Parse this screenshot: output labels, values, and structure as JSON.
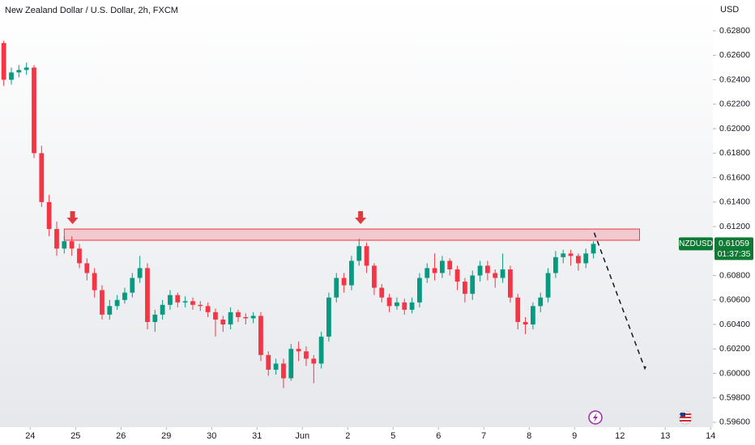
{
  "chart_data": {
    "type": "candlestick",
    "title": "New Zealand Dollar / U.S. Dollar, 2h, FXCM",
    "currency": "USD",
    "symbol": "NZDUSD",
    "countdown": "01:37:35",
    "up_color": "#089981",
    "down_color": "#f23645",
    "open": [
      0.627,
      0.624,
      0.6246,
      0.6248,
      0.625,
      0.618,
      0.614,
      0.6118,
      0.6102,
      0.6108,
      0.6102,
      0.609,
      0.6082,
      0.6068,
      0.6048,
      0.6055,
      0.606,
      0.6066,
      0.6078,
      0.6086,
      0.6042,
      0.6048,
      0.6056,
      0.6064,
      0.6058,
      0.6059,
      0.6056,
      0.6055,
      0.605,
      0.6044,
      0.604,
      0.605,
      0.6046,
      0.6045,
      0.6047,
      0.6015,
      0.6003,
      0.6008,
      0.5996,
      0.602,
      0.6018,
      0.6012,
      0.6008,
      0.603,
      0.6062,
      0.6078,
      0.6072,
      0.6092,
      0.6104,
      0.6088,
      0.607,
      0.6062,
      0.6055,
      0.6058,
      0.6052,
      0.6058,
      0.6078,
      0.6086,
      0.6082,
      0.6092,
      0.6085,
      0.6075,
      0.6065,
      0.608,
      0.6088,
      0.6082,
      0.6078,
      0.6085,
      0.6062,
      0.6042,
      0.604,
      0.6055,
      0.6062,
      0.6082,
      0.6095,
      0.6098,
      0.6096,
      0.609,
      0.6098
    ],
    "high": [
      0.6272,
      0.625,
      0.6252,
      0.6254,
      0.6252,
      0.6186,
      0.6146,
      0.6124,
      0.6112,
      0.6112,
      0.6106,
      0.6094,
      0.6086,
      0.6072,
      0.606,
      0.6064,
      0.607,
      0.6082,
      0.6096,
      0.609,
      0.6052,
      0.606,
      0.6068,
      0.6066,
      0.6063,
      0.6062,
      0.6059,
      0.6058,
      0.6053,
      0.6047,
      0.6054,
      0.6052,
      0.6049,
      0.605,
      0.605,
      0.6018,
      0.6012,
      0.6012,
      0.6024,
      0.6026,
      0.6022,
      0.6015,
      0.6034,
      0.6066,
      0.6082,
      0.6082,
      0.6096,
      0.611,
      0.6107,
      0.609,
      0.6073,
      0.6065,
      0.6062,
      0.6061,
      0.6062,
      0.6082,
      0.609,
      0.6098,
      0.6096,
      0.6094,
      0.6088,
      0.6078,
      0.6084,
      0.6092,
      0.6092,
      0.6085,
      0.6098,
      0.6088,
      0.6065,
      0.6046,
      0.6058,
      0.6066,
      0.6086,
      0.61,
      0.6101,
      0.6101,
      0.6098,
      0.6102,
      0.6108
    ],
    "low": [
      0.6235,
      0.6236,
      0.6242,
      0.6244,
      0.6176,
      0.6136,
      0.6112,
      0.6096,
      0.6098,
      0.6096,
      0.6086,
      0.6076,
      0.6062,
      0.6044,
      0.6044,
      0.6052,
      0.6057,
      0.6062,
      0.6074,
      0.6036,
      0.6034,
      0.6044,
      0.6052,
      0.6054,
      0.6054,
      0.6052,
      0.6051,
      0.6046,
      0.603,
      0.6034,
      0.6036,
      0.6042,
      0.604,
      0.6041,
      0.601,
      0.5998,
      0.5999,
      0.5988,
      0.5994,
      0.601,
      0.6006,
      0.5992,
      0.6004,
      0.6026,
      0.6058,
      0.6066,
      0.6068,
      0.6088,
      0.6082,
      0.6064,
      0.6058,
      0.605,
      0.6052,
      0.6048,
      0.6049,
      0.6054,
      0.6074,
      0.6076,
      0.6078,
      0.608,
      0.6068,
      0.6058,
      0.606,
      0.6075,
      0.6076,
      0.607,
      0.6074,
      0.6058,
      0.6036,
      0.6032,
      0.6036,
      0.605,
      0.6058,
      0.6078,
      0.609,
      0.6088,
      0.6084,
      0.6086,
      0.6094
    ],
    "close": [
      0.624,
      0.6246,
      0.6248,
      0.625,
      0.618,
      0.614,
      0.6118,
      0.6102,
      0.6108,
      0.6102,
      0.609,
      0.6082,
      0.6068,
      0.6048,
      0.6055,
      0.606,
      0.6066,
      0.6078,
      0.6086,
      0.6042,
      0.6048,
      0.6056,
      0.6064,
      0.6058,
      0.6059,
      0.6056,
      0.6055,
      0.605,
      0.6044,
      0.604,
      0.605,
      0.6046,
      0.6045,
      0.6047,
      0.6015,
      0.6003,
      0.6008,
      0.5996,
      0.602,
      0.6018,
      0.6012,
      0.6008,
      0.603,
      0.6062,
      0.6078,
      0.6072,
      0.6092,
      0.6104,
      0.6088,
      0.607,
      0.6062,
      0.6055,
      0.6058,
      0.6052,
      0.6058,
      0.6078,
      0.6086,
      0.6082,
      0.6092,
      0.6085,
      0.6075,
      0.6065,
      0.608,
      0.6088,
      0.6082,
      0.6078,
      0.6085,
      0.6062,
      0.6042,
      0.604,
      0.6055,
      0.6062,
      0.6082,
      0.6095,
      0.6098,
      0.6096,
      0.609,
      0.6098,
      0.61059
    ],
    "xlim": [
      0,
      94.3
    ],
    "xticks": [
      {
        "value": 4,
        "label": "24"
      },
      {
        "value": 10,
        "label": "25"
      },
      {
        "value": 16,
        "label": "26"
      },
      {
        "value": 22,
        "label": "29"
      },
      {
        "value": 28,
        "label": "30"
      },
      {
        "value": 34,
        "label": "31"
      },
      {
        "value": 40,
        "label": "Jun"
      },
      {
        "value": 46,
        "label": "2"
      },
      {
        "value": 52,
        "label": "5"
      },
      {
        "value": 58,
        "label": "6"
      },
      {
        "value": 64,
        "label": "7"
      },
      {
        "value": 70,
        "label": "8"
      },
      {
        "value": 76,
        "label": "9"
      },
      {
        "value": 82,
        "label": "12"
      },
      {
        "value": 88,
        "label": "13"
      },
      {
        "value": 94,
        "label": "14"
      }
    ],
    "ylim": [
      0.5956,
      0.6288
    ],
    "yticks": [
      {
        "value": 0.596,
        "label": "0.59600"
      },
      {
        "value": 0.598,
        "label": "0.59800"
      },
      {
        "value": 0.6,
        "label": "0.60000"
      },
      {
        "value": 0.602,
        "label": "0.60200"
      },
      {
        "value": 0.604,
        "label": "0.60400"
      },
      {
        "value": 0.606,
        "label": "0.60600"
      },
      {
        "value": 0.608,
        "label": "0.60800"
      },
      {
        "value": 0.61,
        "label": "0.61000"
      },
      {
        "value": 0.612,
        "label": "0.61200"
      },
      {
        "value": 0.614,
        "label": "0.61400"
      },
      {
        "value": 0.616,
        "label": "0.61600"
      },
      {
        "value": 0.618,
        "label": "0.61800"
      },
      {
        "value": 0.62,
        "label": "0.62000"
      },
      {
        "value": 0.622,
        "label": "0.62200"
      },
      {
        "value": 0.624,
        "label": "0.62400"
      },
      {
        "value": 0.626,
        "label": "0.62600"
      },
      {
        "value": 0.628,
        "label": "0.62800"
      }
    ],
    "zone": {
      "x": [
        8.5,
        84.6
      ],
      "y": [
        0.61088,
        0.6118
      ],
      "color": "#f23645"
    },
    "arrows": {
      "x": [
        9.6,
        47.7
      ],
      "y": 0.6122,
      "color": "#e03a3e"
    },
    "projection": {
      "x": [
        78.6,
        85.3,
        85.6
      ],
      "y": [
        0.6115,
        0.6004,
        0.6008
      ]
    }
  }
}
